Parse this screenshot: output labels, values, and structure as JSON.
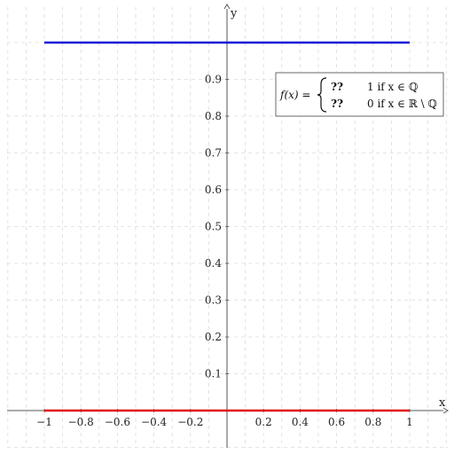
{
  "chart_data": {
    "type": "line",
    "xlabel": "x",
    "ylabel": "y",
    "xlim": [
      -1.2,
      1.2
    ],
    "ylim": [
      -0.1,
      1.1
    ],
    "grid": true,
    "x_ticks": [
      -1,
      -0.8,
      -0.6,
      -0.4,
      -0.2,
      0.2,
      0.4,
      0.6,
      0.8,
      1
    ],
    "x_tick_labels": [
      "−1",
      "−0.8",
      "−0.6",
      "−0.4",
      "−0.2",
      "0.2",
      "0.4",
      "0.6",
      "0.8",
      "1"
    ],
    "y_ticks": [
      0.1,
      0.2,
      0.3,
      0.4,
      0.5,
      0.6,
      0.7,
      0.8,
      0.9
    ],
    "y_tick_labels": [
      "0.1",
      "0.2",
      "0.3",
      "0.4",
      "0.5",
      "0.6",
      "0.7",
      "0.8",
      "0.9"
    ],
    "series": [
      {
        "color": "#1010d8",
        "x": [
          -1,
          1
        ],
        "y": [
          1,
          1
        ]
      },
      {
        "color": "#e01010",
        "x": [
          -1,
          1
        ],
        "y": [
          0,
          0
        ]
      }
    ],
    "annotation": {
      "lhs": "f(x) =",
      "rows": [
        {
          "case": "??",
          "value": "1 if x ∈ ℚ"
        },
        {
          "case": "??",
          "value": "0 if x ∈ ℝ \\ ℚ"
        }
      ]
    },
    "legend_placement": "top-right"
  }
}
